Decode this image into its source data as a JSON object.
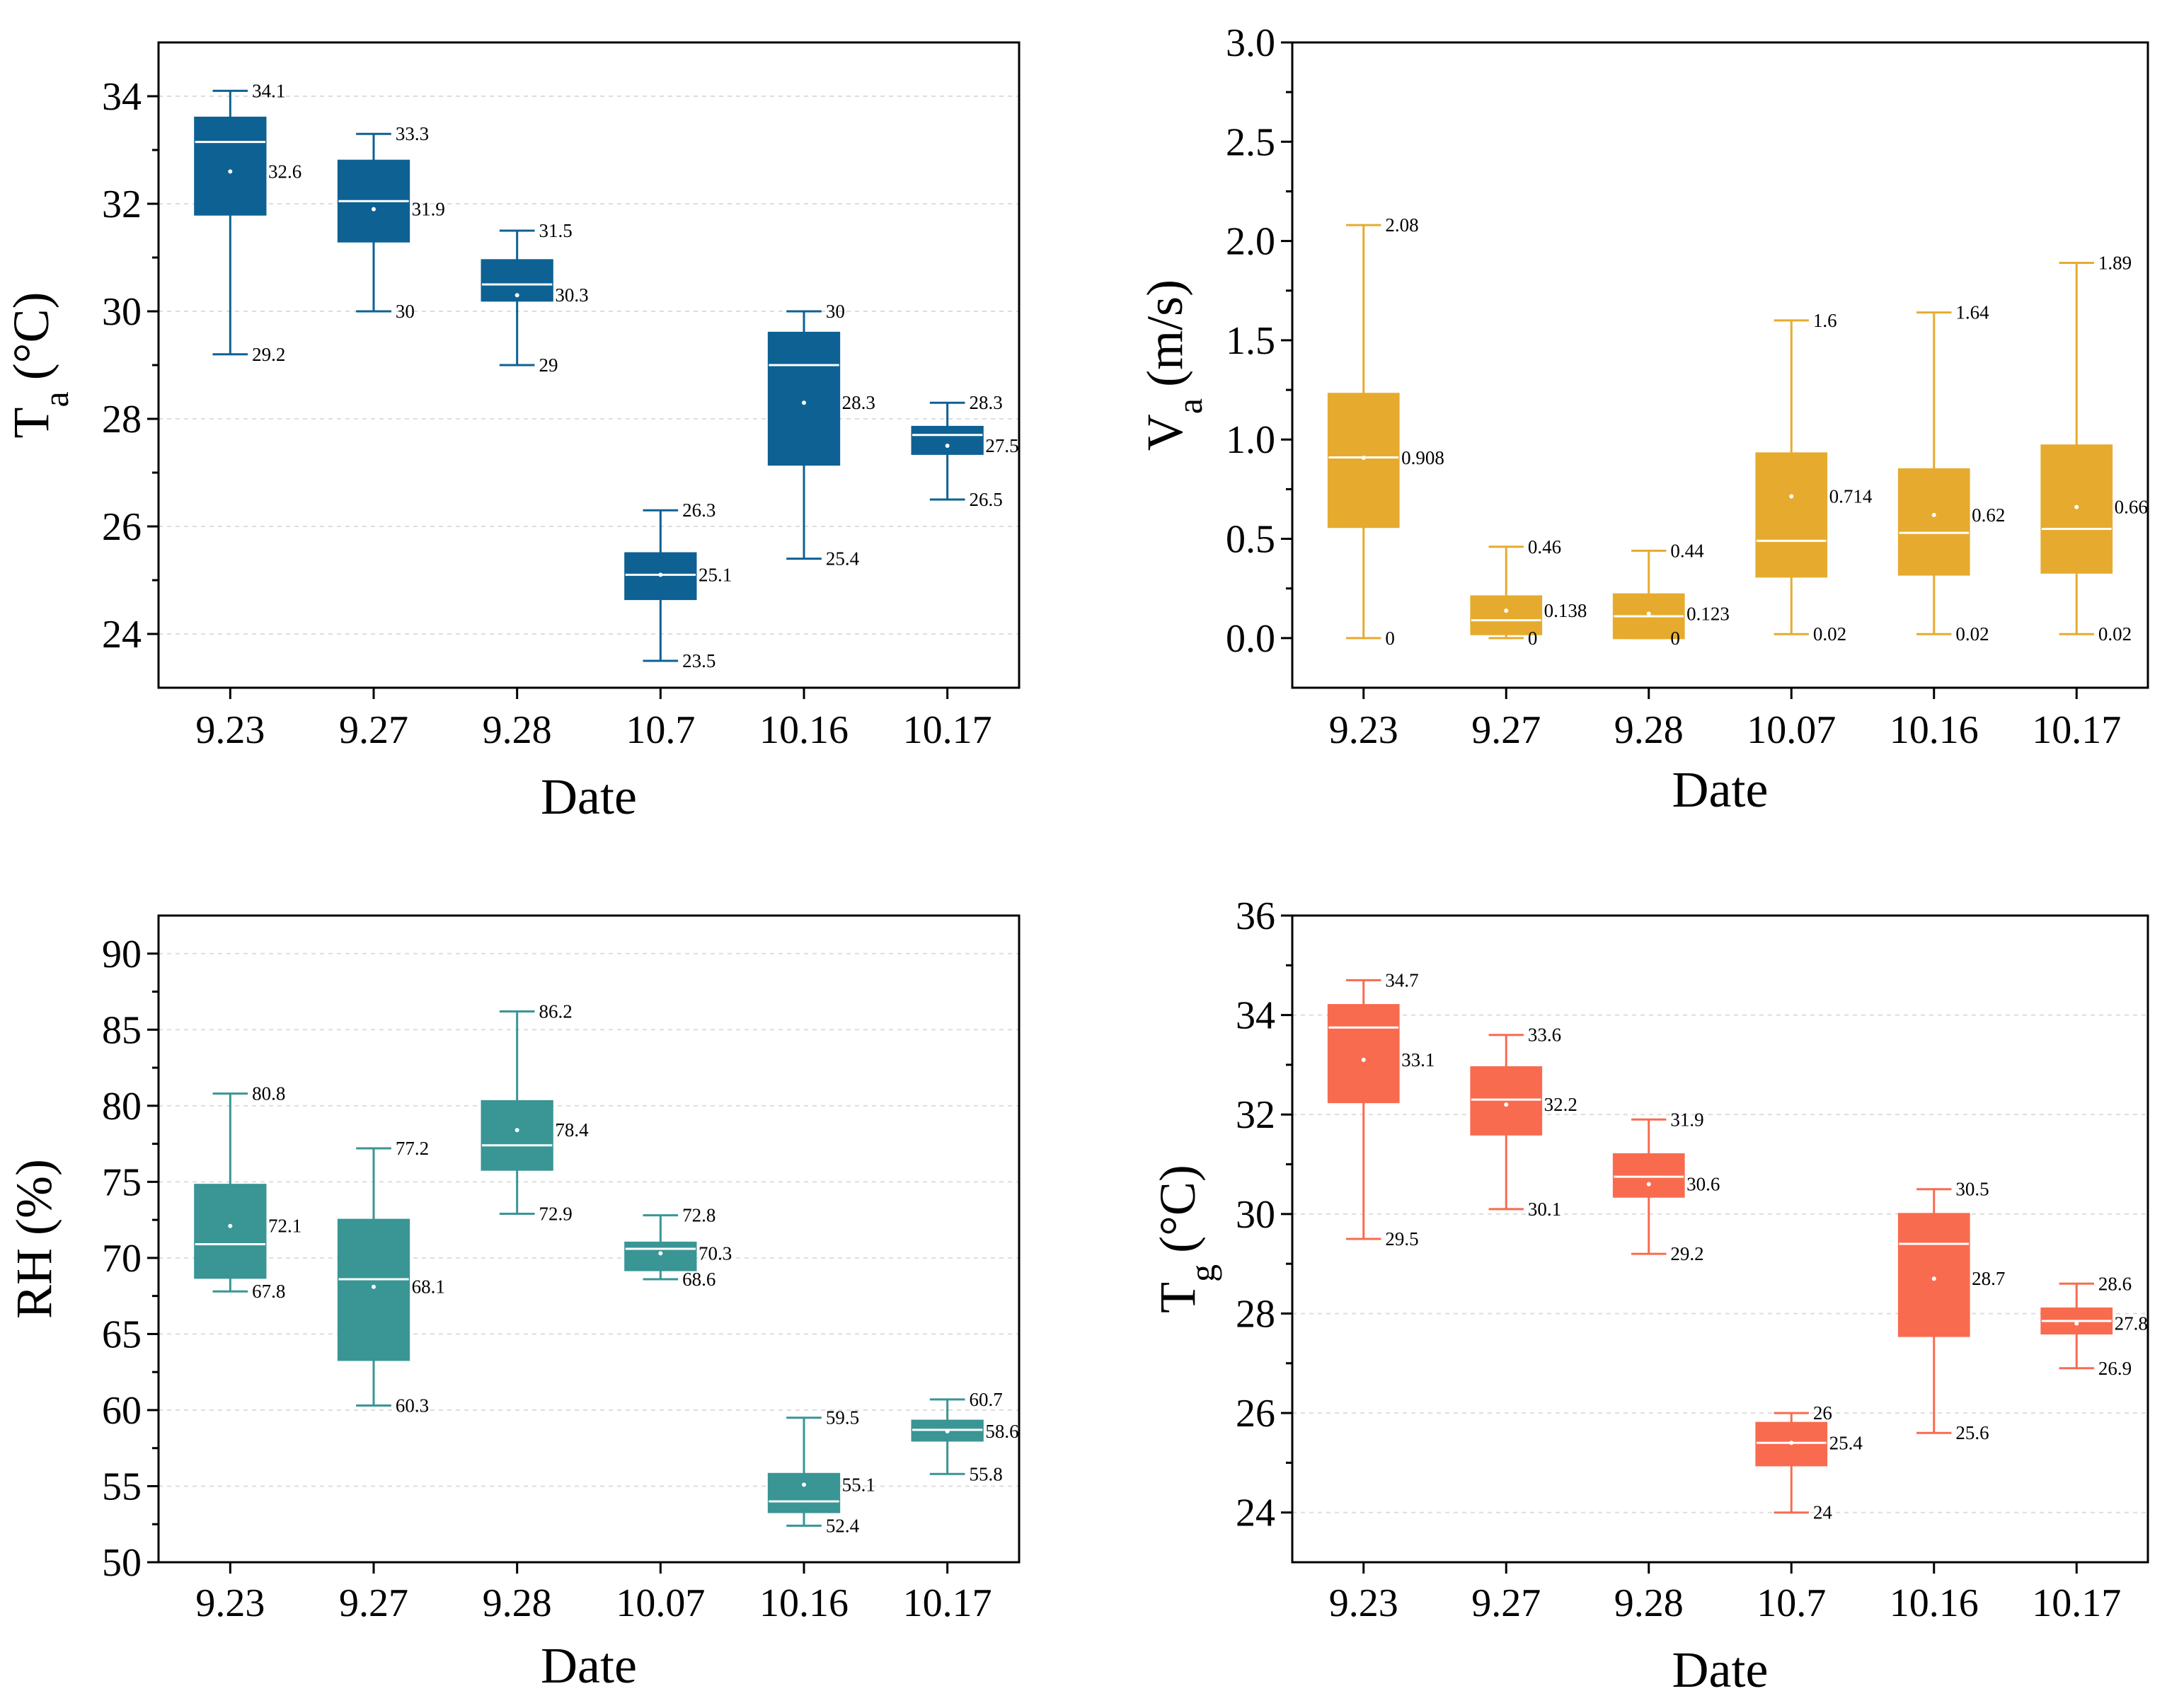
{
  "colors": {
    "ta": "#0e6193",
    "va": "#e6ab2e",
    "rh": "#3a9595",
    "tg": "#f86b4f",
    "axis": "#000000",
    "grid": "#dddddd"
  },
  "chart_data": [
    {
      "type": "box",
      "id": "ta",
      "color_key": "ta",
      "ylabel_main": "T",
      "ylabel_sub": "a",
      "ylabel_unit": "(°C)",
      "xlabel": "Date",
      "ylim": [
        23,
        35
      ],
      "yticks": [
        24,
        26,
        28,
        30,
        32,
        34
      ],
      "ytick_labels": [
        "24",
        "26",
        "28",
        "30",
        "32",
        "34"
      ],
      "ygrid": [
        24,
        26,
        28,
        30,
        32,
        34
      ],
      "categories": [
        "9.23",
        "9.27",
        "9.28",
        "10.7",
        "10.16",
        "10.17"
      ],
      "boxes": [
        {
          "min": 29.2,
          "q1": 31.8,
          "median": 33.15,
          "q3": 33.6,
          "max": 34.1,
          "mean": 32.6,
          "labels": {
            "max": "34.1",
            "mean": "32.6",
            "min": "29.2"
          }
        },
        {
          "min": 30.0,
          "q1": 31.3,
          "median": 32.05,
          "q3": 32.8,
          "max": 33.3,
          "mean": 31.9,
          "labels": {
            "max": "33.3",
            "mean": "31.9",
            "min": "30"
          }
        },
        {
          "min": 29.0,
          "q1": 30.2,
          "median": 30.5,
          "q3": 30.95,
          "max": 31.5,
          "mean": 30.3,
          "labels": {
            "max": "31.5",
            "mean": "30.3",
            "min": "29"
          }
        },
        {
          "min": 23.5,
          "q1": 24.65,
          "median": 25.1,
          "q3": 25.5,
          "max": 26.3,
          "mean": 25.1,
          "labels": {
            "max": "26.3",
            "mean": "25.1",
            "min": "23.5"
          }
        },
        {
          "min": 25.4,
          "q1": 27.15,
          "median": 29.0,
          "q3": 29.6,
          "max": 30.0,
          "mean": 28.3,
          "labels": {
            "max": "30",
            "mean": "28.3",
            "min": "25.4"
          }
        },
        {
          "min": 26.5,
          "q1": 27.35,
          "median": 27.7,
          "q3": 27.85,
          "max": 28.3,
          "mean": 27.5,
          "labels": {
            "max": "28.3",
            "mean": "27.5",
            "min": "26.5"
          }
        }
      ]
    },
    {
      "type": "box",
      "id": "va",
      "color_key": "va",
      "ylabel_main": "V",
      "ylabel_sub": "a",
      "ylabel_unit": "(m/s)",
      "xlabel": "Date",
      "ylim": [
        -0.25,
        3.0
      ],
      "yticks": [
        0.0,
        0.5,
        1.0,
        1.5,
        2.0,
        2.5,
        3.0
      ],
      "ytick_labels": [
        "0.0",
        "0.5",
        "1.0",
        "1.5",
        "2.0",
        "2.5",
        "3.0"
      ],
      "ygrid": [],
      "categories": [
        "9.23",
        "9.27",
        "9.28",
        "10.07",
        "10.16",
        "10.17"
      ],
      "boxes": [
        {
          "min": 0.0,
          "q1": 0.56,
          "median": 0.91,
          "q3": 1.23,
          "max": 2.08,
          "mean": 0.908,
          "labels": {
            "max": "2.08",
            "mean": "0.908",
            "min": "0"
          }
        },
        {
          "min": 0.0,
          "q1": 0.02,
          "median": 0.09,
          "q3": 0.21,
          "max": 0.46,
          "mean": 0.138,
          "labels": {
            "max": "0.46",
            "mean": "0.138",
            "min": "0"
          }
        },
        {
          "min": 0.0,
          "q1": 0.0,
          "median": 0.11,
          "q3": 0.22,
          "max": 0.44,
          "mean": 0.123,
          "labels": {
            "max": "0.44",
            "mean": "0.123",
            "min": "0"
          }
        },
        {
          "min": 0.02,
          "q1": 0.31,
          "median": 0.49,
          "q3": 0.93,
          "max": 1.6,
          "mean": 0.714,
          "labels": {
            "max": "1.6",
            "mean": "0.714",
            "min": "0.02"
          }
        },
        {
          "min": 0.02,
          "q1": 0.32,
          "median": 0.53,
          "q3": 0.85,
          "max": 1.64,
          "mean": 0.62,
          "labels": {
            "max": "1.64",
            "mean": "0.62",
            "min": "0.02"
          }
        },
        {
          "min": 0.02,
          "q1": 0.33,
          "median": 0.55,
          "q3": 0.97,
          "max": 1.89,
          "mean": 0.66,
          "labels": {
            "max": "1.89",
            "mean": "0.66",
            "min": "0.02"
          }
        }
      ]
    },
    {
      "type": "box",
      "id": "rh",
      "color_key": "rh",
      "ylabel_main": "RH (%)",
      "ylabel_sub": "",
      "ylabel_unit": "",
      "xlabel": "Date",
      "ylim": [
        50,
        92.5
      ],
      "yticks": [
        50,
        55,
        60,
        65,
        70,
        75,
        80,
        85,
        90
      ],
      "ytick_labels": [
        "50",
        "55",
        "60",
        "65",
        "70",
        "75",
        "80",
        "85",
        "90"
      ],
      "ygrid": [
        55,
        60,
        65,
        70,
        75,
        80,
        85,
        90
      ],
      "categories": [
        "9.23",
        "9.27",
        "9.28",
        "10.07",
        "10.16",
        "10.17"
      ],
      "boxes": [
        {
          "min": 67.8,
          "q1": 68.7,
          "median": 70.9,
          "q3": 74.8,
          "max": 80.8,
          "mean": 72.1,
          "labels": {
            "max": "80.8",
            "mean": "72.1",
            "min": "67.8"
          }
        },
        {
          "min": 60.3,
          "q1": 63.3,
          "median": 68.6,
          "q3": 72.5,
          "max": 77.2,
          "mean": 68.1,
          "labels": {
            "max": "77.2",
            "mean": "68.1",
            "min": "60.3"
          }
        },
        {
          "min": 72.9,
          "q1": 75.8,
          "median": 77.4,
          "q3": 80.3,
          "max": 86.2,
          "mean": 78.4,
          "labels": {
            "max": "86.2",
            "mean": "78.4",
            "min": "72.9"
          }
        },
        {
          "min": 68.6,
          "q1": 69.2,
          "median": 70.6,
          "q3": 71.0,
          "max": 72.8,
          "mean": 70.3,
          "labels": {
            "max": "72.8",
            "mean": "70.3",
            "min": "68.6"
          }
        },
        {
          "min": 52.4,
          "q1": 53.3,
          "median": 54.0,
          "q3": 55.8,
          "max": 59.5,
          "mean": 55.1,
          "labels": {
            "max": "59.5",
            "mean": "55.1",
            "min": "52.4"
          }
        },
        {
          "min": 55.8,
          "q1": 58.0,
          "median": 58.7,
          "q3": 59.3,
          "max": 60.7,
          "mean": 58.6,
          "labels": {
            "max": "60.7",
            "mean": "58.6",
            "min": "55.8"
          }
        }
      ]
    },
    {
      "type": "box",
      "id": "tg",
      "color_key": "tg",
      "ylabel_main": "T",
      "ylabel_sub": "g",
      "ylabel_unit": "(°C)",
      "xlabel": "Date",
      "ylim": [
        23,
        36
      ],
      "yticks": [
        24,
        26,
        28,
        30,
        32,
        34,
        36
      ],
      "ytick_labels": [
        "24",
        "26",
        "28",
        "30",
        "32",
        "34",
        "36"
      ],
      "ygrid": [
        24,
        26,
        28,
        30,
        32,
        34
      ],
      "categories": [
        "9.23",
        "9.27",
        "9.28",
        "10.7",
        "10.16",
        "10.17"
      ],
      "boxes": [
        {
          "min": 29.5,
          "q1": 32.25,
          "median": 33.75,
          "q3": 34.2,
          "max": 34.7,
          "mean": 33.1,
          "labels": {
            "max": "34.7",
            "mean": "33.1",
            "min": "29.5"
          }
        },
        {
          "min": 30.1,
          "q1": 31.6,
          "median": 32.3,
          "q3": 32.95,
          "max": 33.6,
          "mean": 32.2,
          "labels": {
            "max": "33.6",
            "mean": "32.2",
            "min": "30.1"
          }
        },
        {
          "min": 29.2,
          "q1": 30.35,
          "median": 30.75,
          "q3": 31.2,
          "max": 31.9,
          "mean": 30.6,
          "labels": {
            "max": "31.9",
            "mean": "30.6",
            "min": "29.2"
          }
        },
        {
          "min": 24.0,
          "q1": 24.95,
          "median": 25.4,
          "q3": 25.8,
          "max": 26.0,
          "mean": 25.4,
          "labels": {
            "max": "26",
            "mean": "25.4",
            "min": "24"
          }
        },
        {
          "min": 25.6,
          "q1": 27.55,
          "median": 29.4,
          "q3": 30.0,
          "max": 30.5,
          "mean": 28.7,
          "labels": {
            "max": "30.5",
            "mean": "28.7",
            "min": "25.6"
          }
        },
        {
          "min": 26.9,
          "q1": 27.6,
          "median": 27.85,
          "q3": 28.1,
          "max": 28.6,
          "mean": 27.8,
          "labels": {
            "max": "28.6",
            "mean": "27.8",
            "min": "26.9"
          }
        }
      ]
    }
  ]
}
